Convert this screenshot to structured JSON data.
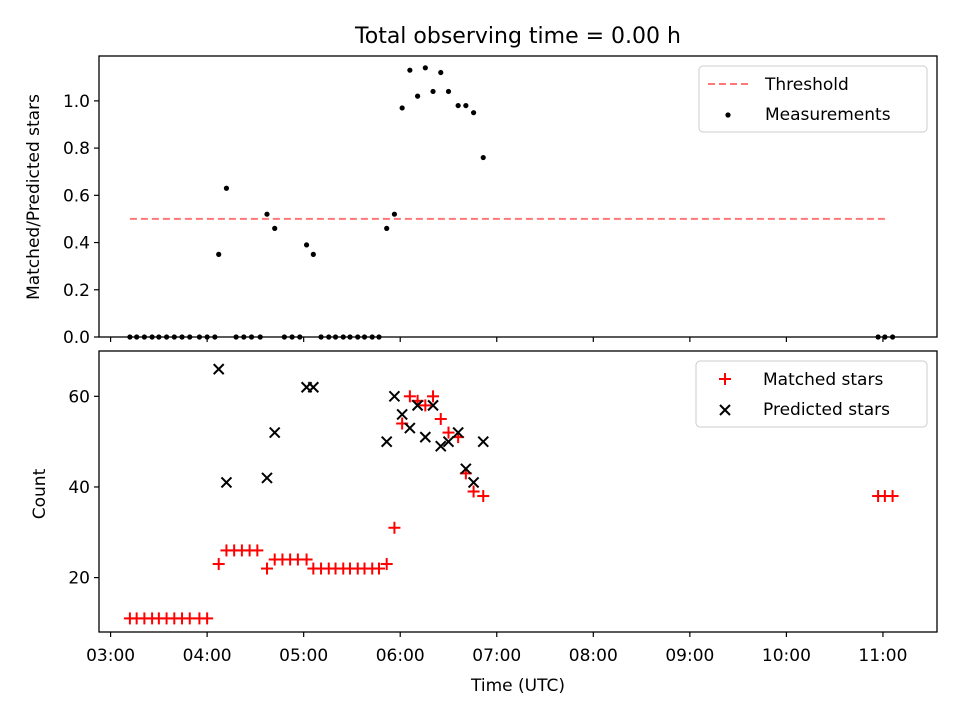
{
  "figure": {
    "title": "Total observing time = 0.00 h",
    "xlabel": "Time (UTC)",
    "xticks": [
      "03:00",
      "04:00",
      "05:00",
      "06:00",
      "07:00",
      "08:00",
      "09:00",
      "10:00",
      "11:00"
    ]
  },
  "colors": {
    "threshold": "#ff7777",
    "measurements": "#000000",
    "matched": "#ff0000",
    "predicted": "#000000"
  },
  "chart_data": [
    {
      "type": "scatter",
      "panel": "top",
      "ylabel": "Matched/Predicted stars",
      "xlim": [
        2.88,
        11.56
      ],
      "ylim": [
        0.0,
        1.19
      ],
      "yticks": [
        "0.0",
        "0.2",
        "0.4",
        "0.6",
        "0.8",
        "1.0"
      ],
      "legend": {
        "placement": "top-right",
        "entries": [
          "Threshold",
          "Measurements"
        ]
      },
      "threshold": {
        "name": "Threshold",
        "y": 0.5,
        "x": [
          3.2,
          11.05
        ]
      },
      "series": [
        {
          "name": "Measurements",
          "x": [
            3.2,
            3.27,
            3.35,
            3.43,
            3.5,
            3.58,
            3.66,
            3.74,
            3.82,
            3.92,
            4.0,
            4.08,
            4.12,
            4.2,
            4.3,
            4.38,
            4.46,
            4.55,
            4.62,
            4.7,
            4.8,
            4.88,
            4.96,
            5.03,
            5.1,
            5.18,
            5.26,
            5.33,
            5.41,
            5.48,
            5.56,
            5.63,
            5.71,
            5.78,
            5.86,
            5.94,
            6.02,
            6.1,
            6.18,
            6.26,
            6.34,
            6.42,
            6.5,
            6.6,
            6.68,
            6.76,
            6.86,
            10.95,
            11.02,
            11.1
          ],
          "y": [
            0.0,
            0.0,
            0.0,
            0.0,
            0.0,
            0.0,
            0.0,
            0.0,
            0.0,
            0.0,
            0.0,
            0.0,
            0.35,
            0.63,
            0.0,
            0.0,
            0.0,
            0.0,
            0.52,
            0.46,
            0.0,
            0.0,
            0.0,
            0.39,
            0.35,
            0.0,
            0.0,
            0.0,
            0.0,
            0.0,
            0.0,
            0.0,
            0.0,
            0.0,
            0.46,
            0.52,
            0.97,
            1.13,
            1.02,
            1.14,
            1.04,
            1.12,
            1.04,
            0.98,
            0.98,
            0.95,
            0.76,
            0.0,
            0.0,
            0.0
          ]
        }
      ]
    },
    {
      "type": "scatter",
      "panel": "bottom",
      "ylabel": "Count",
      "xlim": [
        2.88,
        11.56
      ],
      "ylim": [
        8,
        70
      ],
      "yticks": [
        "20",
        "40",
        "60"
      ],
      "legend": {
        "placement": "top-right",
        "entries": [
          "Matched stars",
          "Predicted stars"
        ]
      },
      "series": [
        {
          "name": "Matched stars",
          "marker": "+",
          "x": [
            3.2,
            3.27,
            3.35,
            3.43,
            3.5,
            3.58,
            3.66,
            3.74,
            3.82,
            3.92,
            4.0,
            4.12,
            4.2,
            4.28,
            4.36,
            4.44,
            4.52,
            4.62,
            4.7,
            4.78,
            4.86,
            4.94,
            5.03,
            5.1,
            5.18,
            5.26,
            5.33,
            5.41,
            5.48,
            5.56,
            5.63,
            5.71,
            5.78,
            5.86,
            5.94,
            6.02,
            6.1,
            6.18,
            6.26,
            6.34,
            6.42,
            6.5,
            6.6,
            6.68,
            6.76,
            6.86,
            10.95,
            11.02,
            11.1
          ],
          "y": [
            11,
            11,
            11,
            11,
            11,
            11,
            11,
            11,
            11,
            11,
            11,
            23,
            26,
            26,
            26,
            26,
            26,
            22,
            24,
            24,
            24,
            24,
            24,
            22,
            22,
            22,
            22,
            22,
            22,
            22,
            22,
            22,
            22,
            23,
            31,
            54,
            60,
            59,
            58,
            60,
            55,
            52,
            51,
            43,
            39,
            38,
            38,
            38,
            38
          ]
        },
        {
          "name": "Predicted stars",
          "marker": "x",
          "x": [
            4.12,
            4.2,
            4.62,
            4.7,
            5.03,
            5.1,
            5.86,
            5.94,
            6.02,
            6.1,
            6.18,
            6.26,
            6.34,
            6.42,
            6.5,
            6.6,
            6.68,
            6.76,
            6.86
          ],
          "y": [
            66,
            41,
            42,
            52,
            62,
            62,
            50,
            60,
            56,
            53,
            58,
            51,
            58,
            49,
            50,
            52,
            44,
            41,
            50
          ]
        }
      ]
    }
  ]
}
